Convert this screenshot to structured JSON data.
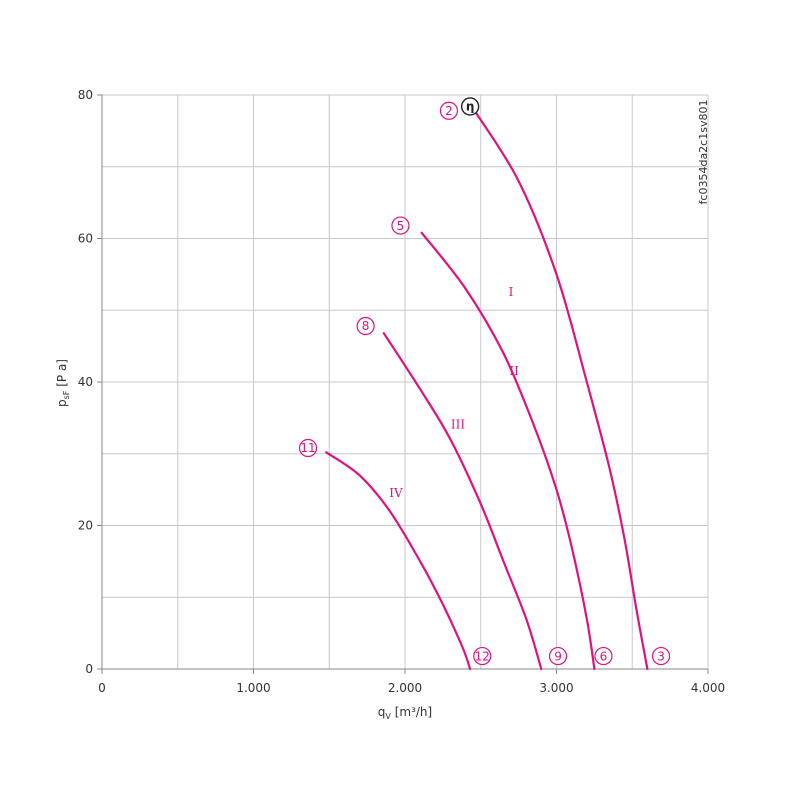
{
  "chart_data": {
    "type": "line",
    "title": "",
    "xlabel": "qV [m³/h]",
    "xlabel_main": "q",
    "xlabel_sub": "V",
    "xlabel_unit": " [m³/h]",
    "ylabel": "psF [Pa]",
    "ylabel_main": "p",
    "ylabel_sub": "sF",
    "ylabel_unit": " [P a]",
    "xlim": [
      0,
      4000
    ],
    "ylim": [
      0,
      80
    ],
    "x_ticks": [
      0,
      1000,
      2000,
      3000,
      4000
    ],
    "x_tick_labels": [
      "0",
      "1.000",
      "2.000",
      "3.000",
      "4.000"
    ],
    "y_ticks": [
      0,
      20,
      40,
      60,
      80
    ],
    "y_tick_labels": [
      "0",
      "20",
      "40",
      "60",
      "80"
    ],
    "grid": true,
    "curve_color": "#e0117f",
    "series": [
      {
        "name": "I",
        "label_at": [
          2700,
          52
        ],
        "points": [
          [
            2460,
            77.8
          ],
          [
            2750,
            68
          ],
          [
            3000,
            55
          ],
          [
            3200,
            40
          ],
          [
            3350,
            28
          ],
          [
            3450,
            18
          ],
          [
            3530,
            8
          ],
          [
            3600,
            0
          ]
        ]
      },
      {
        "name": "II",
        "label_at": [
          2720,
          41
        ],
        "points": [
          [
            2110,
            60.8
          ],
          [
            2400,
            53
          ],
          [
            2650,
            44
          ],
          [
            2850,
            34
          ],
          [
            3000,
            25
          ],
          [
            3100,
            17
          ],
          [
            3200,
            7
          ],
          [
            3250,
            0
          ]
        ]
      },
      {
        "name": "III",
        "label_at": [
          2350,
          33.5
        ],
        "points": [
          [
            1860,
            46.8
          ],
          [
            2100,
            39
          ],
          [
            2300,
            32
          ],
          [
            2500,
            23
          ],
          [
            2650,
            15
          ],
          [
            2800,
            7
          ],
          [
            2900,
            0
          ]
        ]
      },
      {
        "name": "IV",
        "label_at": [
          1940,
          24
        ],
        "points": [
          [
            1480,
            30.2
          ],
          [
            1700,
            27
          ],
          [
            1900,
            22
          ],
          [
            2100,
            15
          ],
          [
            2250,
            9
          ],
          [
            2380,
            3
          ],
          [
            2430,
            0
          ]
        ]
      }
    ],
    "point_markers": [
      {
        "label": "2",
        "x": 2290,
        "y": 77.8
      },
      {
        "label": "5",
        "x": 1970,
        "y": 61.8
      },
      {
        "label": "8",
        "x": 1740,
        "y": 47.8
      },
      {
        "label": "11",
        "x": 1360,
        "y": 30.8
      },
      {
        "label": "12",
        "x": 2510,
        "y": 1.8
      },
      {
        "label": "9",
        "x": 3010,
        "y": 1.8
      },
      {
        "label": "6",
        "x": 3310,
        "y": 1.8
      },
      {
        "label": "3",
        "x": 3690,
        "y": 1.8
      }
    ],
    "efficiency_marker": {
      "label": "η",
      "x": 2430,
      "y": 78.4
    },
    "annotation": "fc0354da2c1sv801"
  }
}
